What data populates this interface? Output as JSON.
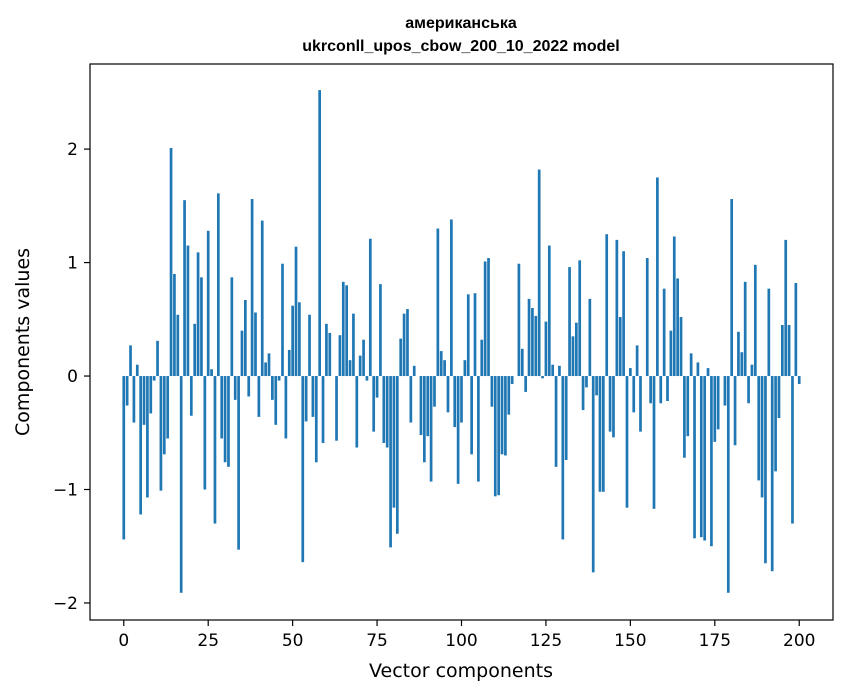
{
  "chart_data": {
    "type": "bar",
    "title_line1": "американська",
    "title_line2": "ukrconll_upos_cbow_200_10_2022 model",
    "xlabel": "Vector components",
    "ylabel": "Components values",
    "xlim": [
      -10,
      210
    ],
    "ylim": [
      -2.15,
      2.75
    ],
    "xticks": [
      0,
      25,
      50,
      75,
      100,
      125,
      150,
      175,
      200
    ],
    "xtick_labels": [
      "0",
      "25",
      "50",
      "75",
      "100",
      "125",
      "150",
      "175",
      "200"
    ],
    "yticks": [
      -2,
      -1,
      0,
      1,
      2
    ],
    "ytick_labels": [
      "−2",
      "−1",
      "0",
      "1",
      "2"
    ],
    "grid": false,
    "bar_color": "#1f77b4",
    "values": [
      -1.44,
      -0.26,
      0.27,
      -0.41,
      0.1,
      -1.22,
      -0.43,
      -1.07,
      -0.33,
      -0.04,
      0.31,
      -1.01,
      -0.69,
      -0.55,
      2.01,
      0.9,
      0.54,
      -1.91,
      1.55,
      1.15,
      -0.35,
      0.46,
      1.09,
      0.87,
      -1.0,
      1.28,
      0.06,
      -1.3,
      1.61,
      -0.55,
      -0.76,
      -0.8,
      0.87,
      -0.21,
      -1.53,
      0.4,
      0.67,
      -0.18,
      1.56,
      0.56,
      -0.36,
      1.37,
      0.12,
      0.2,
      -0.21,
      -0.43,
      -0.04,
      0.99,
      -0.55,
      0.23,
      0.62,
      1.14,
      0.65,
      -1.64,
      -0.4,
      0.54,
      -0.36,
      -0.76,
      2.52,
      -0.59,
      0.46,
      0.38,
      0.0,
      -0.57,
      0.36,
      0.83,
      0.8,
      0.14,
      0.55,
      -0.63,
      0.18,
      0.32,
      -0.04,
      1.21,
      -0.49,
      -0.19,
      0.81,
      -0.59,
      -0.63,
      -1.51,
      -1.16,
      -1.39,
      0.33,
      0.55,
      0.59,
      -0.41,
      0.09,
      0.0,
      -0.52,
      -0.76,
      -0.53,
      -0.93,
      -0.27,
      1.3,
      0.22,
      0.14,
      -0.32,
      1.38,
      -0.45,
      -0.95,
      -0.41,
      0.14,
      0.72,
      -0.69,
      0.73,
      -0.93,
      0.32,
      1.01,
      1.04,
      -0.27,
      -1.06,
      -1.05,
      -0.69,
      -0.7,
      -0.34,
      -0.07,
      0.0,
      0.99,
      0.24,
      -0.14,
      0.68,
      0.6,
      0.53,
      1.82,
      -0.02,
      0.48,
      1.15,
      0.1,
      -0.8,
      0.09,
      -1.44,
      -0.74,
      0.96,
      0.35,
      0.47,
      1.02,
      -0.3,
      -0.1,
      0.68,
      -1.73,
      -0.17,
      -1.02,
      -1.02,
      1.25,
      -0.49,
      -0.54,
      1.2,
      0.52,
      1.1,
      -1.16,
      0.07,
      -0.32,
      0.27,
      -0.49,
      0.0,
      1.04,
      -0.24,
      -1.17,
      1.75,
      -0.24,
      0.77,
      -0.22,
      0.4,
      1.23,
      0.86,
      0.52,
      -0.72,
      -0.53,
      0.2,
      -1.43,
      0.12,
      -1.42,
      -1.45,
      0.07,
      -1.5,
      -0.58,
      -0.47,
      0.0,
      -0.26,
      -1.91,
      1.56,
      -0.61,
      0.39,
      0.21,
      0.83,
      -0.24,
      0.1,
      0.98,
      -0.92,
      -1.07,
      -1.65,
      0.77,
      -1.72,
      -0.84,
      -0.37,
      0.45,
      1.2,
      0.45,
      -1.3,
      0.82,
      -0.07
    ]
  }
}
